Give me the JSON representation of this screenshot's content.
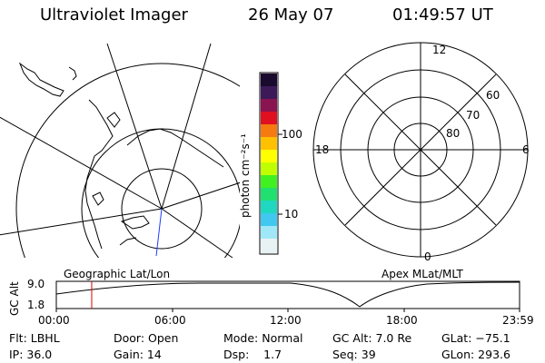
{
  "header": {
    "instrument": "Ultraviolet Imager",
    "date": "26 May 07",
    "time": "01:49:57 UT"
  },
  "colorbar": {
    "unit_label": "photon cm⁻²s⁻¹",
    "tick_100": "100",
    "tick_10": "10",
    "scale": "log",
    "range": [
      3,
      700
    ]
  },
  "left_panel": {
    "label": "Geographic Lat/Lon"
  },
  "right_panel": {
    "label": "Apex MLat/MLT",
    "mlt_12": "12",
    "mlt_18": "18",
    "mlt_6": "6",
    "mlt_0": "0",
    "lat_60": "60",
    "lat_70": "70",
    "lat_80": "80"
  },
  "altitude_plot": {
    "ylabel": "GC Alt",
    "y_top": "9.0",
    "y_bottom": "1.8",
    "ylim": [
      1.8,
      9.0
    ],
    "marker_time": "01:49:57",
    "x_ticks": [
      "00:00",
      "06:00",
      "12:00",
      "18:00",
      "23:59"
    ],
    "marker_color": "#e00000"
  },
  "info": {
    "flt": "Flt: LBHL",
    "door": "Door: Open",
    "mode": "Mode: Normal",
    "gc_alt": "GC Alt: 7.0 Re",
    "glat": "GLat: −75.1",
    "ip": "IP: 36.0",
    "gain": "Gain: 14",
    "dsp": "Dsp:    1.7",
    "seq": "Seq: 39",
    "glon": "GLon: 293.6"
  }
}
